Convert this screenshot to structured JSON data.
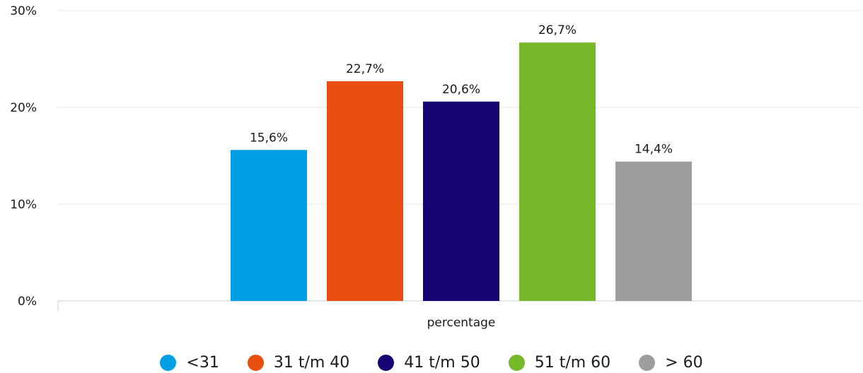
{
  "chart_data": {
    "type": "bar",
    "categories": [
      "percentage"
    ],
    "xlabel": "",
    "ylabel": "",
    "ylim": [
      0,
      30
    ],
    "yticks": [
      "0%",
      "10%",
      "20%",
      "30%"
    ],
    "grid": true,
    "legend_position": "bottom",
    "series": [
      {
        "name": "<31",
        "values": [
          15.6
        ],
        "label": "15,6%",
        "color": "#009fe3"
      },
      {
        "name": "31 t/m 40",
        "values": [
          22.7
        ],
        "label": "22,7%",
        "color": "#e84e0f"
      },
      {
        "name": "41 t/m 50",
        "values": [
          20.6
        ],
        "label": "20,6%",
        "color": "#170575"
      },
      {
        "name": "51 t/m 60",
        "values": [
          26.7
        ],
        "label": "26,7%",
        "color": "#76b82a"
      },
      {
        "name": "> 60",
        "values": [
          14.4
        ],
        "label": "14,4%",
        "color": "#9d9d9c"
      }
    ]
  }
}
